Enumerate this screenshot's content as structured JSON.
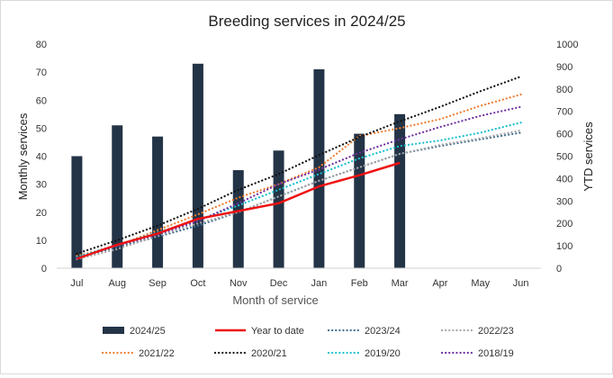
{
  "chart_data": {
    "type": "bar+line",
    "title": "Breeding services in 2024/25",
    "xlabel": "Month of service",
    "ylabel_left": "Monthly services",
    "ylabel_right": "YTD services",
    "categories": [
      "Jul",
      "Aug",
      "Sep",
      "Oct",
      "Nov",
      "Dec",
      "Jan",
      "Feb",
      "Mar",
      "Apr",
      "May",
      "Jun"
    ],
    "ylim_left": [
      0,
      80
    ],
    "yticks_left": [
      0,
      10,
      20,
      30,
      40,
      50,
      60,
      70,
      80
    ],
    "ylim_right": [
      0,
      1000
    ],
    "yticks_right": [
      0,
      100,
      200,
      300,
      400,
      500,
      600,
      700,
      800,
      900,
      1000
    ],
    "grid": false,
    "legend_position": "bottom",
    "series": [
      {
        "name": "2024/25",
        "kind": "bar",
        "axis": "left",
        "color": "#243447",
        "values": [
          40,
          51,
          47,
          73,
          35,
          42,
          71,
          48,
          55,
          null,
          null,
          null
        ]
      },
      {
        "name": "Year to date",
        "kind": "line",
        "style": "solid",
        "axis": "right",
        "color": "#ee1111",
        "values": [
          42,
          105,
          155,
          220,
          255,
          290,
          365,
          415,
          470,
          null,
          null,
          null
        ]
      },
      {
        "name": "2023/24",
        "kind": "line",
        "style": "dotted",
        "axis": "right",
        "color": "#3f6e92",
        "values": [
          45,
          95,
          140,
          190,
          250,
          320,
          390,
          450,
          510,
          545,
          575,
          605
        ]
      },
      {
        "name": "2022/23",
        "kind": "line",
        "style": "dotted",
        "axis": "right",
        "color": "#a6a6a6",
        "values": [
          40,
          85,
          145,
          200,
          250,
          320,
          390,
          450,
          510,
          550,
          580,
          615
        ]
      },
      {
        "name": "2021/22",
        "kind": "line",
        "style": "dotted",
        "axis": "right",
        "color": "#ed7d31",
        "values": [
          55,
          100,
          170,
          240,
          315,
          375,
          450,
          590,
          625,
          665,
          725,
          775
        ]
      },
      {
        "name": "2020/21",
        "kind": "line",
        "style": "dotted",
        "axis": "right",
        "color": "#111111",
        "values": [
          65,
          125,
          190,
          265,
          350,
          420,
          505,
          585,
          655,
          720,
          790,
          855
        ]
      },
      {
        "name": "2019/20",
        "kind": "line",
        "style": "dotted",
        "axis": "right",
        "color": "#17becf",
        "values": [
          50,
          105,
          160,
          215,
          280,
          350,
          420,
          490,
          545,
          570,
          605,
          650
        ]
      },
      {
        "name": "2018/19",
        "kind": "line",
        "style": "dotted",
        "axis": "right",
        "color": "#7030a0",
        "values": [
          45,
          100,
          150,
          210,
          290,
          375,
          440,
          515,
          575,
          630,
          680,
          720
        ]
      }
    ]
  }
}
